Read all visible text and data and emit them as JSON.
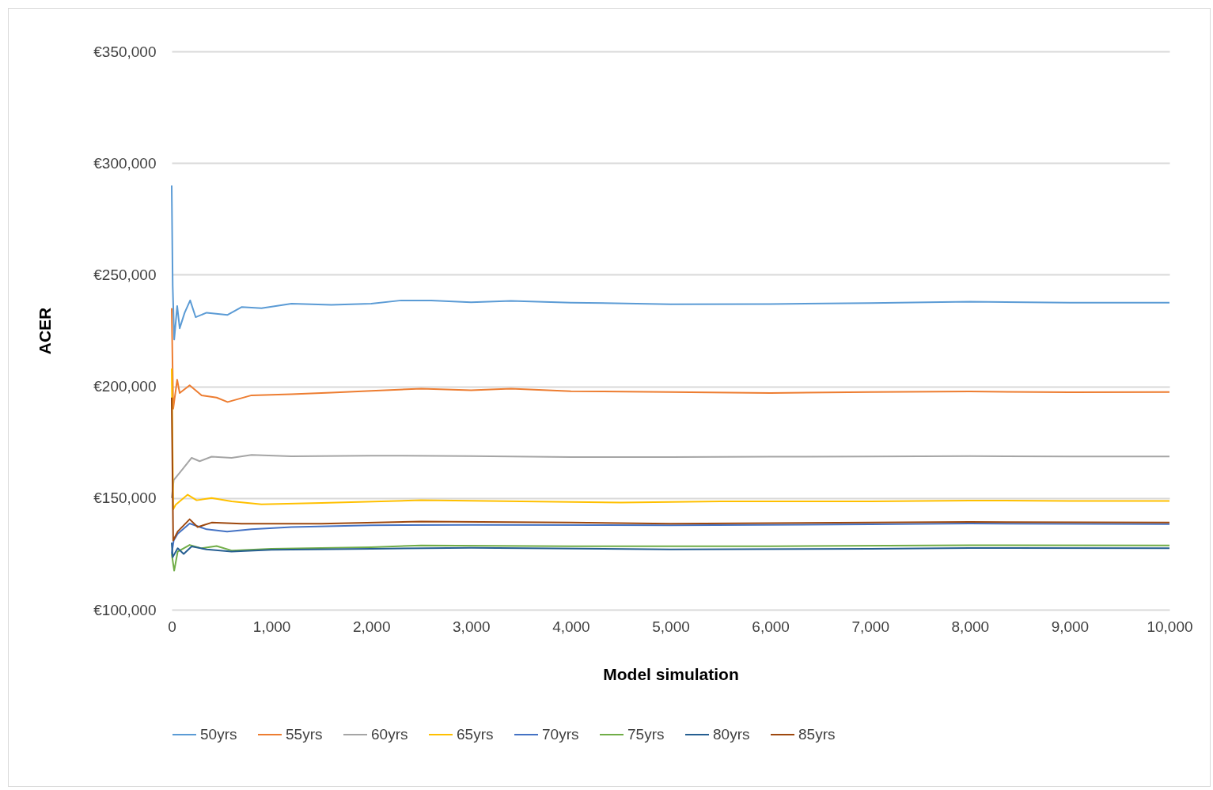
{
  "chart_data": {
    "type": "line",
    "xlabel": "Model simulation",
    "ylabel": "ACER",
    "xlim": [
      0,
      10000
    ],
    "ylim": [
      100000,
      350000
    ],
    "xticks": [
      0,
      {
        "value": 1000,
        "label": "1,000"
      },
      {
        "value": 2000,
        "label": "2,000"
      },
      {
        "value": 3000,
        "label": "3,000"
      },
      {
        "value": 4000,
        "label": "4,000"
      },
      {
        "value": 5000,
        "label": "5,000"
      },
      {
        "value": 6000,
        "label": "6,000"
      },
      {
        "value": 7000,
        "label": "7,000"
      },
      {
        "value": 8000,
        "label": "8,000"
      },
      {
        "value": 9000,
        "label": "9,000"
      },
      {
        "value": 10000,
        "label": "10,000"
      }
    ],
    "yticks": [
      {
        "value": 100000,
        "label": "€100,000"
      },
      {
        "value": 150000,
        "label": "€150,000"
      },
      {
        "value": 200000,
        "label": "€200,000"
      },
      {
        "value": 250000,
        "label": "€250,000"
      },
      {
        "value": 300000,
        "label": "€300,000"
      },
      {
        "value": 350000,
        "label": "€350,000"
      }
    ],
    "grid": "y",
    "legend": "bottom",
    "marker": "none",
    "line_style": "solid",
    "series": [
      {
        "name": "50yrs",
        "color": "#5b9bd5",
        "x": [
          0,
          10,
          25,
          55,
          80,
          130,
          185,
          240,
          350,
          560,
          700,
          900,
          1200,
          1600,
          2000,
          2300,
          2600,
          3000,
          3400,
          4000,
          5000,
          6000,
          7000,
          8000,
          9000,
          10000
        ],
        "values": [
          290000,
          245000,
          221000,
          236000,
          226000,
          233000,
          238500,
          231000,
          233000,
          232000,
          235500,
          235000,
          237000,
          236500,
          237000,
          238500,
          238500,
          237700,
          238300,
          237500,
          236800,
          236900,
          237300,
          237900,
          237500,
          237500
        ]
      },
      {
        "name": "55yrs",
        "color": "#ed7d31",
        "x": [
          0,
          15,
          55,
          80,
          180,
          300,
          450,
          560,
          800,
          1200,
          1600,
          2000,
          2500,
          3000,
          3400,
          4000,
          5000,
          6000,
          7000,
          8000,
          9000,
          10000
        ],
        "values": [
          235000,
          190000,
          203000,
          197000,
          200500,
          196000,
          195000,
          193000,
          196000,
          196500,
          197200,
          198000,
          199000,
          198300,
          199000,
          197800,
          197500,
          197000,
          197500,
          197700,
          197400,
          197500
        ]
      },
      {
        "name": "60yrs",
        "color": "#a5a5a5",
        "x": [
          0,
          20,
          110,
          200,
          280,
          400,
          600,
          800,
          1200,
          2000,
          3000,
          4000,
          5000,
          6000,
          7000,
          8000,
          9000,
          10000
        ],
        "values": [
          150000,
          158000,
          163000,
          168000,
          166500,
          168500,
          168000,
          169300,
          168700,
          169000,
          168800,
          168300,
          168300,
          168500,
          168600,
          168800,
          168600,
          168600
        ]
      },
      {
        "name": "65yrs",
        "color": "#ffc000",
        "x": [
          0,
          15,
          40,
          160,
          250,
          400,
          600,
          900,
          1500,
          2500,
          3500,
          4500,
          5500,
          7000,
          8000,
          9000,
          10000
        ],
        "values": [
          208000,
          145000,
          147000,
          151500,
          149000,
          150000,
          148500,
          147200,
          147800,
          149000,
          148500,
          148000,
          148500,
          148500,
          148900,
          148700,
          148700
        ]
      },
      {
        "name": "70yrs",
        "color": "#4472c4",
        "x": [
          0,
          20,
          60,
          180,
          350,
          555,
          800,
          1200,
          2000,
          3000,
          5000,
          7000,
          8000,
          10000
        ],
        "values": [
          125000,
          131000,
          134000,
          138600,
          136000,
          135000,
          136000,
          137000,
          137800,
          138000,
          137800,
          138200,
          138600,
          138300
        ]
      },
      {
        "name": "75yrs",
        "color": "#70ad47",
        "x": [
          0,
          25,
          60,
          180,
          300,
          450,
          600,
          1000,
          2000,
          2500,
          4000,
          6000,
          8000,
          10000
        ],
        "values": [
          125000,
          117500,
          126000,
          129000,
          127500,
          128500,
          126500,
          127300,
          128000,
          128800,
          128400,
          128400,
          128900,
          128800
        ]
      },
      {
        "name": "80yrs",
        "color": "#255e91",
        "x": [
          0,
          10,
          60,
          120,
          200,
          350,
          600,
          1000,
          2000,
          3000,
          5000,
          7000,
          8000,
          10000
        ],
        "values": [
          130000,
          123500,
          127500,
          125000,
          128300,
          127000,
          126000,
          126800,
          127300,
          127700,
          127000,
          127300,
          127600,
          127500
        ]
      },
      {
        "name": "85yrs",
        "color": "#9e480e",
        "x": [
          0,
          15,
          60,
          180,
          260,
          400,
          700,
          1500,
          2500,
          4000,
          5000,
          7000,
          8000,
          10000
        ],
        "values": [
          195000,
          131000,
          135000,
          140500,
          137000,
          139000,
          138500,
          138500,
          139500,
          139000,
          138500,
          139000,
          139300,
          139000
        ]
      }
    ]
  }
}
